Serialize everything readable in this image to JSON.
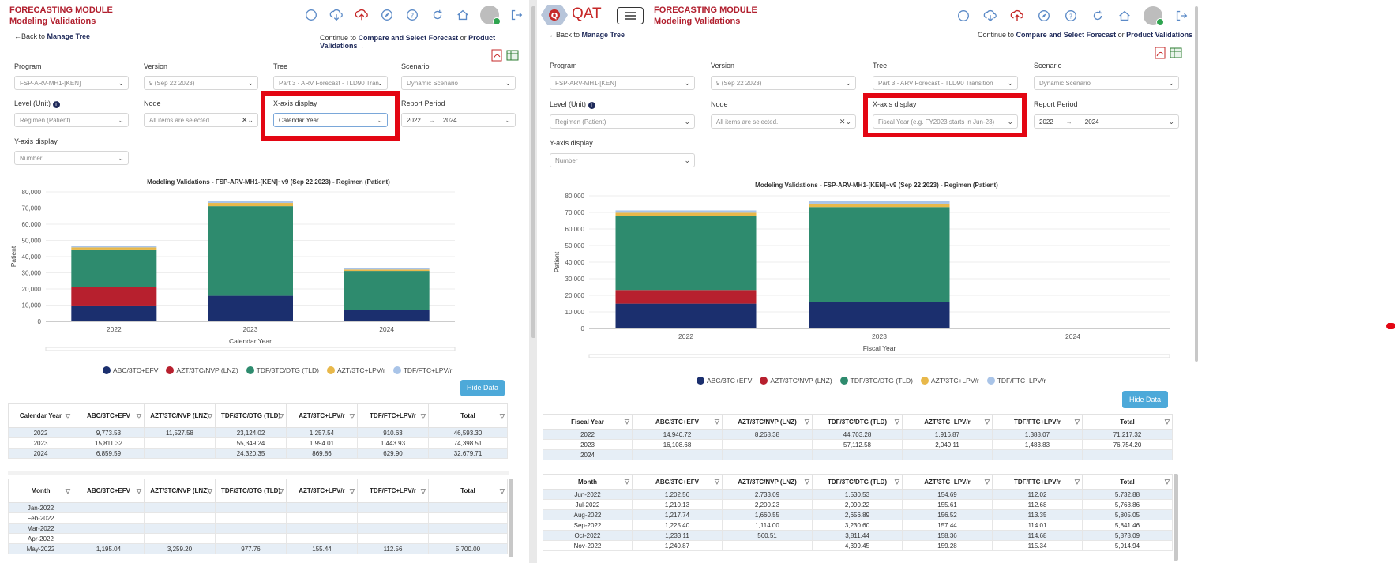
{
  "left": {
    "header": {
      "module": "FORECASTING MODULE",
      "page": "Modeling Validations"
    },
    "nav": {
      "back": "Back to",
      "back_link": "Manage Tree",
      "continue_prefix": "Continue to",
      "link1": "Compare and Select Forecast",
      "or": "or",
      "link2": "Product Validations"
    },
    "filters": {
      "program": {
        "label": "Program",
        "value": "FSP-ARV-MH1-[KEN]"
      },
      "version": {
        "label": "Version",
        "value": "9 (Sep 22 2023)"
      },
      "tree": {
        "label": "Tree",
        "value": "Part 3 - ARV Forecast - TLD90 Tran"
      },
      "scenario": {
        "label": "Scenario",
        "value": "Dynamic Scenario"
      },
      "level": {
        "label": "Level (Unit)",
        "value": "Regimen (Patient)"
      },
      "node": {
        "label": "Node",
        "value": "All items are selected."
      },
      "xaxis": {
        "label": "X-axis display",
        "value": "Calendar Year"
      },
      "report_period": {
        "label": "Report Period",
        "from": "2022",
        "to": "2024"
      },
      "yaxis": {
        "label": "Y-axis display",
        "value": "Number"
      }
    },
    "chart_title": "Modeling Validations - FSP-ARV-MH1-[KEN]~v9 (Sep 22 2023) - Regimen (Patient)",
    "hide_data": "Hide Data",
    "year_table": {
      "headers": [
        "Calendar Year",
        "ABC/3TC+EFV",
        "AZT/3TC/NVP (LNZ)",
        "TDF/3TC/DTG (TLD)",
        "AZT/3TC+LPV/r",
        "TDF/FTC+LPV/r",
        "Total"
      ],
      "rows": [
        [
          "2022",
          "9,773.53",
          "11,527.58",
          "23,124.02",
          "1,257.54",
          "910.63",
          "46,593.30"
        ],
        [
          "2023",
          "15,811.32",
          "",
          "55,349.24",
          "1,994.01",
          "1,443.93",
          "74,398.51"
        ],
        [
          "2024",
          "6,859.59",
          "",
          "24,320.35",
          "869.86",
          "629.90",
          "32,679.71"
        ]
      ]
    },
    "month_table": {
      "headers": [
        "Month",
        "ABC/3TC+EFV",
        "AZT/3TC/NVP (LNZ)",
        "TDF/3TC/DTG (TLD)",
        "AZT/3TC+LPV/r",
        "TDF/FTC+LPV/r",
        "Total"
      ],
      "rows": [
        [
          "Jan-2022",
          "",
          "",
          "",
          "",
          "",
          ""
        ],
        [
          "Feb-2022",
          "",
          "",
          "",
          "",
          "",
          ""
        ],
        [
          "Mar-2022",
          "",
          "",
          "",
          "",
          "",
          ""
        ],
        [
          "Apr-2022",
          "",
          "",
          "",
          "",
          "",
          ""
        ],
        [
          "May-2022",
          "1,195.04",
          "3,259.20",
          "977.76",
          "155.44",
          "112.56",
          "5,700.00"
        ]
      ]
    }
  },
  "right": {
    "header": {
      "brand": "QAT",
      "module": "FORECASTING MODULE",
      "page": "Modeling Validations"
    },
    "nav": {
      "back": "Back to",
      "back_link": "Manage Tree",
      "continue_prefix": "Continue to",
      "link1": "Compare and Select Forecast",
      "or": "or",
      "link2": "Product Validations"
    },
    "filters": {
      "program": {
        "label": "Program",
        "value": "FSP-ARV-MH1-[KEN]"
      },
      "version": {
        "label": "Version",
        "value": "9 (Sep 22 2023)"
      },
      "tree": {
        "label": "Tree",
        "value": "Part 3 - ARV Forecast - TLD90 Transition"
      },
      "scenario": {
        "label": "Scenario",
        "value": "Dynamic Scenario"
      },
      "level": {
        "label": "Level (Unit)",
        "value": "Regimen (Patient)"
      },
      "node": {
        "label": "Node",
        "value": "All items are selected."
      },
      "xaxis": {
        "label": "X-axis display",
        "value": "Fiscal Year (e.g. FY2023 starts in Jun-23)"
      },
      "report_period": {
        "label": "Report Period",
        "from": "2022",
        "to": "2024"
      },
      "yaxis": {
        "label": "Y-axis display",
        "value": "Number"
      }
    },
    "chart_title": "Modeling Validations - FSP-ARV-MH1-[KEN]~v9 (Sep 22 2023) - Regimen (Patient)",
    "hide_data": "Hide Data",
    "year_table": {
      "headers": [
        "Fiscal Year",
        "ABC/3TC+EFV",
        "AZT/3TC/NVP (LNZ)",
        "TDF/3TC/DTG (TLD)",
        "AZT/3TC+LPV/r",
        "TDF/FTC+LPV/r",
        "Total"
      ],
      "rows": [
        [
          "2022",
          "14,940.72",
          "8,268.38",
          "44,703.28",
          "1,916.87",
          "1,388.07",
          "71,217.32"
        ],
        [
          "2023",
          "16,108.68",
          "",
          "57,112.58",
          "2,049.11",
          "1,483.83",
          "76,754.20"
        ],
        [
          "2024",
          "",
          "",
          "",
          "",
          "",
          ""
        ]
      ]
    },
    "month_table": {
      "headers": [
        "Month",
        "ABC/3TC+EFV",
        "AZT/3TC/NVP (LNZ)",
        "TDF/3TC/DTG (TLD)",
        "AZT/3TC+LPV/r",
        "TDF/FTC+LPV/r",
        "Total"
      ],
      "rows": [
        [
          "Jun-2022",
          "1,202.56",
          "2,733.09",
          "1,530.53",
          "154.69",
          "112.02",
          "5,732.88"
        ],
        [
          "Jul-2022",
          "1,210.13",
          "2,200.23",
          "2,090.22",
          "155.61",
          "112.68",
          "5,768.86"
        ],
        [
          "Aug-2022",
          "1,217.74",
          "1,660.55",
          "2,656.89",
          "156.52",
          "113.35",
          "5,805.05"
        ],
        [
          "Sep-2022",
          "1,225.40",
          "1,114.00",
          "3,230.60",
          "157.44",
          "114.01",
          "5,841.46"
        ],
        [
          "Oct-2022",
          "1,233.11",
          "560.51",
          "3,811.44",
          "158.36",
          "114.68",
          "5,878.09"
        ],
        [
          "Nov-2022",
          "1,240.87",
          "",
          "4,399.45",
          "159.28",
          "115.34",
          "5,914.94"
        ]
      ]
    }
  },
  "chart_data": [
    {
      "type": "bar",
      "stacked": true,
      "categories": [
        "2022",
        "2023",
        "2024"
      ],
      "xlabel": "Calendar Year",
      "ylabel": "Patient",
      "ylim": [
        0,
        80000
      ],
      "yticks": [
        "0",
        "10,000",
        "20,000",
        "30,000",
        "40,000",
        "50,000",
        "60,000",
        "70,000",
        "80,000"
      ],
      "series": [
        {
          "name": "ABC/3TC+EFV",
          "color": "#1b2f6e",
          "values": [
            9773.53,
            15811.32,
            6859.59
          ]
        },
        {
          "name": "AZT/3TC/NVP (LNZ)",
          "color": "#b7202e",
          "values": [
            11527.58,
            0,
            0
          ]
        },
        {
          "name": "TDF/3TC/DTG (TLD)",
          "color": "#2e8b6e",
          "values": [
            23124.02,
            55349.24,
            24320.35
          ]
        },
        {
          "name": "AZT/3TC+LPV/r",
          "color": "#e8b84a",
          "values": [
            1257.54,
            1994.01,
            869.86
          ]
        },
        {
          "name": "TDF/FTC+LPV/r",
          "color": "#a9c4e8",
          "values": [
            910.63,
            1443.93,
            629.9
          ]
        }
      ]
    },
    {
      "type": "bar",
      "stacked": true,
      "categories": [
        "2022",
        "2023",
        "2024"
      ],
      "xlabel": "Fiscal Year",
      "ylabel": "Patient",
      "ylim": [
        0,
        80000
      ],
      "yticks": [
        "0",
        "10,000",
        "20,000",
        "30,000",
        "40,000",
        "50,000",
        "60,000",
        "70,000",
        "80,000"
      ],
      "series": [
        {
          "name": "ABC/3TC+EFV",
          "color": "#1b2f6e",
          "values": [
            14940.72,
            16108.68,
            0
          ]
        },
        {
          "name": "AZT/3TC/NVP (LNZ)",
          "color": "#b7202e",
          "values": [
            8268.38,
            0,
            0
          ]
        },
        {
          "name": "TDF/3TC/DTG (TLD)",
          "color": "#2e8b6e",
          "values": [
            44703.28,
            57112.58,
            0
          ]
        },
        {
          "name": "AZT/3TC+LPV/r",
          "color": "#e8b84a",
          "values": [
            1916.87,
            2049.11,
            0
          ]
        },
        {
          "name": "TDF/FTC+LPV/r",
          "color": "#a9c4e8",
          "values": [
            1388.07,
            1483.83,
            0
          ]
        }
      ]
    }
  ]
}
